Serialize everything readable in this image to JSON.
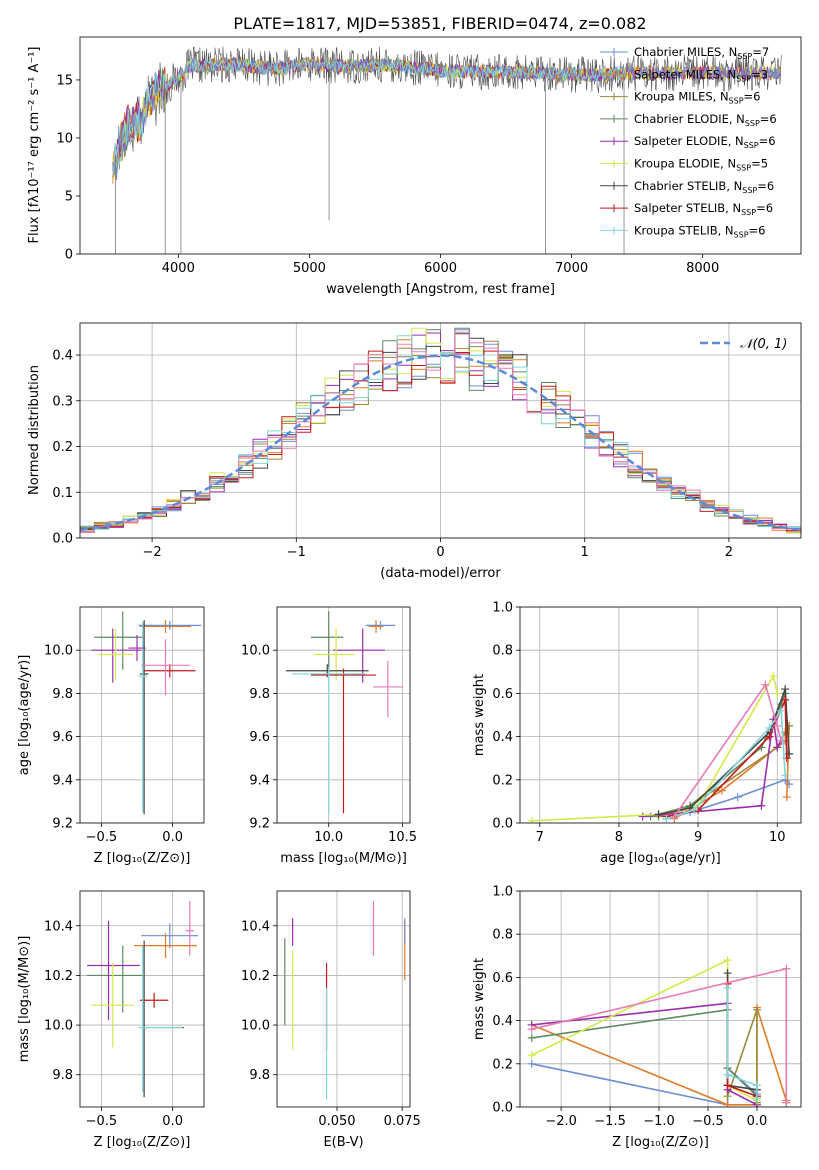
{
  "figure_title": "PLATE=1817, MJD=53851, FIBERID=0474, z=0.082",
  "colors": {
    "Chabrier MILES": "#6a8fd8",
    "Salpeter MILES": "#e07b28",
    "Kroupa MILES": "#9a8a3a",
    "Chabrier ELODIE": "#5e8a60",
    "Salpeter ELODIE": "#9b2fb0",
    "Kroupa ELODIE": "#d4e84a",
    "Chabrier STELIB": "#444444",
    "Salpeter STELIB": "#c41a1a",
    "Kroupa STELIB": "#7fd6dc",
    "pink": "#e87ab8",
    "grid": "#b0b0b0"
  },
  "chart_data": [
    {
      "id": "spectrum",
      "type": "line",
      "xlabel": "wavelength [Angstrom, rest frame]",
      "ylabel": "Flux [fλ10⁻¹⁷ erg cm⁻² s⁻¹ A⁻¹]",
      "xlim": [
        3250,
        8750
      ],
      "ylim": [
        0,
        18.7
      ],
      "xticks": [
        4000,
        5000,
        6000,
        7000,
        8000
      ],
      "yticks": [
        0,
        5,
        10,
        15
      ],
      "grid": false,
      "legend_position": "top-right",
      "legend": [
        {
          "label": "Chabrier MILES, N",
          "sub": "SSP",
          "value": "=7"
        },
        {
          "label": "Salpeter MILES, N",
          "sub": "SSP",
          "value": "=3"
        },
        {
          "label": "Kroupa MILES, N",
          "sub": "SSP",
          "value": "=6"
        },
        {
          "label": "Chabrier ELODIE, N",
          "sub": "SSP",
          "value": "=6"
        },
        {
          "label": "Salpeter ELODIE, N",
          "sub": "SSP",
          "value": "=6"
        },
        {
          "label": "Kroupa ELODIE, N",
          "sub": "SSP",
          "value": "=5"
        },
        {
          "label": "Chabrier STELIB, N",
          "sub": "SSP",
          "value": "=6"
        },
        {
          "label": "Salpeter STELIB, N",
          "sub": "SSP",
          "value": "=6"
        },
        {
          "label": "Kroupa STELIB, N",
          "sub": "SSP",
          "value": "=6"
        }
      ],
      "profile_x": [
        3500,
        3600,
        3700,
        3800,
        3900,
        4000,
        4100,
        4200,
        4400,
        4600,
        4800,
        5000,
        5200,
        5400,
        5600,
        6000,
        6400,
        6800,
        7200,
        7400
      ],
      "profile_y": [
        7.6,
        10.8,
        11.5,
        13.8,
        14.3,
        15.2,
        16.3,
        16.2,
        16.4,
        16.1,
        16.0,
        16.4,
        16.2,
        16.2,
        16.3,
        15.8,
        15.7,
        15.6,
        15.4,
        15.6
      ]
    },
    {
      "id": "residuals",
      "type": "histogram",
      "xlabel": "(data-model)/error",
      "ylabel": "Normed distribution",
      "xlim": [
        -2.5,
        2.5
      ],
      "ylim": [
        0,
        0.47
      ],
      "xticks": [
        -2,
        -1,
        0,
        1,
        2
      ],
      "yticks": [
        0.0,
        0.1,
        0.2,
        0.3,
        0.4
      ],
      "grid": true,
      "bin_width": 0.1,
      "legend": "𝒩(0, 1)",
      "gaussian": {
        "mean": 0,
        "sigma": 1
      }
    },
    {
      "id": "age_vs_Z",
      "type": "errorbar",
      "xlabel": "Z [log₁₀(Z/Z⊙)]",
      "ylabel": "age  [log₁₀(age/yr)]",
      "xlim": [
        -0.65,
        0.22
      ],
      "ylim": [
        9.2,
        10.2
      ],
      "xticks": [
        -0.5,
        0.0
      ],
      "yticks": [
        9.2,
        9.4,
        9.6,
        9.8,
        10.0
      ],
      "grid": true,
      "points": [
        {
          "series": "Chabrier MILES",
          "x": -0.02,
          "y": 10.115,
          "xerr": [
            0.22,
            0.22
          ],
          "yerr": [
            0.02,
            0.02
          ]
        },
        {
          "series": "Salpeter MILES",
          "x": -0.05,
          "y": 10.11,
          "xerr": [
            0.18,
            0.18
          ],
          "yerr": [
            0.03,
            0.03
          ]
        },
        {
          "series": "Chabrier ELODIE",
          "x": -0.35,
          "y": 10.06,
          "xerr": [
            0.2,
            0.15
          ],
          "yerr": [
            0.15,
            0.12
          ]
        },
        {
          "series": "Salpeter ELODIE",
          "x": -0.42,
          "y": 10.0,
          "xerr": [
            0.15,
            0.2
          ],
          "yerr": [
            0.15,
            0.1
          ]
        },
        {
          "series": "Kroupa ELODIE",
          "x": -0.4,
          "y": 9.98,
          "xerr": [
            0.12,
            0.12
          ],
          "yerr": [
            0.12,
            0.12
          ]
        },
        {
          "series": "Chabrier STELIB",
          "x": -0.2,
          "y": 9.89,
          "xerr": [
            0.03,
            0.03
          ],
          "yerr": [
            0.65,
            0.25
          ]
        },
        {
          "series": "Salpeter STELIB",
          "x": -0.02,
          "y": 9.905,
          "xerr": [
            0.18,
            0.18
          ],
          "yerr": [
            0.03,
            0.03
          ]
        },
        {
          "series": "Kroupa STELIB",
          "x": -0.21,
          "y": 9.88,
          "xerr": [
            0.03,
            0.03
          ],
          "yerr": [
            0.63,
            0.25
          ]
        },
        {
          "series": "pink",
          "x": -0.05,
          "y": 9.93,
          "xerr": [
            0.17,
            0.17
          ],
          "yerr": [
            0.14,
            0.12
          ]
        },
        {
          "series": "Salpeter ELODIE",
          "x": -0.25,
          "y": 10.01,
          "xerr": [
            0.06,
            0.06
          ],
          "yerr": [
            0.06,
            0.06
          ]
        }
      ]
    },
    {
      "id": "age_vs_mass",
      "type": "errorbar",
      "xlabel": "mass [log₁₀(M/M⊙)]",
      "ylabel": "",
      "xlim": [
        9.65,
        10.55
      ],
      "ylim": [
        9.2,
        10.2
      ],
      "xticks": [
        10.0,
        10.5
      ],
      "yticks": [
        9.2,
        9.4,
        9.6,
        9.8,
        10.0
      ],
      "grid": true,
      "points": [
        {
          "series": "Chabrier MILES",
          "x": 10.35,
          "y": 10.115,
          "xerr": [
            0.1,
            0.1
          ],
          "yerr": [
            0.02,
            0.02
          ]
        },
        {
          "series": "Salpeter MILES",
          "x": 10.32,
          "y": 10.11,
          "xerr": [
            0.05,
            0.05
          ],
          "yerr": [
            0.03,
            0.03
          ]
        },
        {
          "series": "Chabrier ELODIE",
          "x": 10.0,
          "y": 10.06,
          "xerr": [
            0.12,
            0.1
          ],
          "yerr": [
            0.15,
            0.12
          ]
        },
        {
          "series": "Salpeter ELODIE",
          "x": 10.23,
          "y": 10.0,
          "xerr": [
            0.2,
            0.15
          ],
          "yerr": [
            0.15,
            0.1
          ]
        },
        {
          "series": "Kroupa ELODIE",
          "x": 10.05,
          "y": 9.98,
          "xerr": [
            0.15,
            0.12
          ],
          "yerr": [
            0.12,
            0.12
          ]
        },
        {
          "series": "Chabrier STELIB",
          "x": 9.99,
          "y": 9.905,
          "xerr": [
            0.28,
            0.28
          ],
          "yerr": [
            0.03,
            0.03
          ]
        },
        {
          "series": "Salpeter STELIB",
          "x": 10.1,
          "y": 9.885,
          "xerr": [
            0.22,
            0.22
          ],
          "yerr": [
            0.64,
            0.03
          ]
        },
        {
          "series": "Kroupa STELIB",
          "x": 10.0,
          "y": 9.89,
          "xerr": [
            0.25,
            0.25
          ],
          "yerr": [
            0.65,
            0.03
          ]
        },
        {
          "series": "pink",
          "x": 10.4,
          "y": 9.83,
          "xerr": [
            0.1,
            0.1
          ],
          "yerr": [
            0.14,
            0.12
          ]
        }
      ]
    },
    {
      "id": "weight_vs_age",
      "type": "line",
      "xlabel": "age  [log₁₀(age/yr)]",
      "ylabel": "mass weight",
      "xlim": [
        6.75,
        10.3
      ],
      "ylim": [
        0,
        1.0
      ],
      "xticks": [
        7,
        8,
        9,
        10
      ],
      "yticks": [
        0.0,
        0.2,
        0.4,
        0.6,
        0.8,
        1.0
      ],
      "grid": true,
      "series": [
        {
          "name": "Chabrier MILES",
          "x": [
            8.6,
            8.9,
            9.5,
            10.1,
            10.15
          ],
          "y": [
            0.02,
            0.05,
            0.12,
            0.2,
            0.18
          ]
        },
        {
          "name": "Salpeter MILES",
          "x": [
            8.7,
            9.3,
            10.1,
            10.15,
            10.12
          ],
          "y": [
            0.02,
            0.15,
            0.38,
            0.45,
            0.12
          ]
        },
        {
          "name": "Kroupa MILES",
          "x": [
            8.5,
            8.8,
            9.2,
            10.0,
            10.1,
            10.15
          ],
          "y": [
            0.03,
            0.06,
            0.15,
            0.35,
            0.42,
            0.45
          ]
        },
        {
          "name": "Chabrier ELODIE",
          "x": [
            8.4,
            8.9,
            9.8,
            10.05,
            10.1
          ],
          "y": [
            0.03,
            0.08,
            0.35,
            0.55,
            0.6
          ]
        },
        {
          "name": "Salpeter ELODIE",
          "x": [
            8.3,
            9.8,
            9.95,
            10.0,
            10.05
          ],
          "y": [
            0.03,
            0.08,
            0.48,
            0.35,
            0.38
          ]
        },
        {
          "name": "Kroupa ELODIE",
          "x": [
            6.9,
            8.5,
            9.0,
            9.95,
            10.0
          ],
          "y": [
            0.01,
            0.04,
            0.08,
            0.68,
            0.6
          ]
        },
        {
          "name": "Chabrier STELIB",
          "x": [
            8.5,
            8.9,
            9.9,
            10.1,
            10.15
          ],
          "y": [
            0.04,
            0.07,
            0.42,
            0.62,
            0.32
          ]
        },
        {
          "name": "Salpeter STELIB",
          "x": [
            8.6,
            9.0,
            9.9,
            10.1,
            10.12
          ],
          "y": [
            0.03,
            0.06,
            0.4,
            0.57,
            0.3
          ]
        },
        {
          "name": "Kroupa STELIB",
          "x": [
            8.6,
            8.95,
            9.9,
            10.05,
            10.1
          ],
          "y": [
            0.02,
            0.06,
            0.44,
            0.52,
            0.22
          ]
        },
        {
          "name": "pink",
          "x": [
            8.7,
            9.85,
            10.0,
            10.05
          ],
          "y": [
            0.03,
            0.64,
            0.45,
            0.38
          ]
        }
      ]
    },
    {
      "id": "mass_vs_Z",
      "type": "errorbar",
      "xlabel": "Z [log₁₀(Z/Z⊙)]",
      "ylabel": "mass [log₁₀(M/M⊙)]",
      "xlim": [
        -0.65,
        0.22
      ],
      "ylim": [
        9.67,
        10.54
      ],
      "xticks": [
        -0.5,
        0.0
      ],
      "yticks": [
        9.8,
        10.0,
        10.2,
        10.4
      ],
      "grid": true,
      "points": [
        {
          "series": "Chabrier MILES",
          "x": -0.02,
          "y": 10.36,
          "xerr": [
            0.2,
            0.2
          ],
          "yerr": [
            0.05,
            0.05
          ]
        },
        {
          "series": "Salpeter MILES",
          "x": -0.05,
          "y": 10.32,
          "xerr": [
            0.22,
            0.22
          ],
          "yerr": [
            0.05,
            0.05
          ]
        },
        {
          "series": "Chabrier ELODIE",
          "x": -0.35,
          "y": 10.2,
          "xerr": [
            0.25,
            0.15
          ],
          "yerr": [
            0.15,
            0.12
          ]
        },
        {
          "series": "Salpeter ELODIE",
          "x": -0.45,
          "y": 10.24,
          "xerr": [
            0.15,
            0.22
          ],
          "yerr": [
            0.22,
            0.18
          ]
        },
        {
          "series": "Kroupa ELODIE",
          "x": -0.42,
          "y": 10.08,
          "xerr": [
            0.15,
            0.15
          ],
          "yerr": [
            0.17,
            0.17
          ]
        },
        {
          "series": "Chabrier STELIB",
          "x": -0.2,
          "y": 9.99,
          "xerr": [
            0.03,
            0.28
          ],
          "yerr": [
            0.28,
            0.35
          ]
        },
        {
          "series": "Salpeter STELIB",
          "x": -0.13,
          "y": 10.1,
          "xerr": [
            0.1,
            0.1
          ],
          "yerr": [
            0.03,
            0.03
          ]
        },
        {
          "series": "Kroupa STELIB",
          "x": -0.21,
          "y": 9.99,
          "xerr": [
            0.03,
            0.28
          ],
          "yerr": [
            0.26,
            0.33
          ]
        },
        {
          "series": "pink",
          "x": 0.12,
          "y": 10.38,
          "xerr": [
            0.03,
            0.03
          ],
          "yerr": [
            0.1,
            0.12
          ]
        }
      ]
    },
    {
      "id": "mass_vs_ebv",
      "type": "errorbar",
      "xlabel": "E(B-V)",
      "ylabel": "",
      "xlim": [
        0.027,
        0.078
      ],
      "ylim": [
        9.67,
        10.54
      ],
      "xticks": [
        0.05,
        0.075
      ],
      "yticks": [
        9.8,
        10.0,
        10.2,
        10.4
      ],
      "grid": true,
      "points": [
        {
          "series": "Chabrier ELODIE",
          "x": 0.03,
          "y": 10.15,
          "xerr": [
            0,
            0
          ],
          "yerr": [
            0.15,
            0.2
          ]
        },
        {
          "series": "Salpeter ELODIE",
          "x": 0.033,
          "y": 10.37,
          "xerr": [
            0,
            0
          ],
          "yerr": [
            0.05,
            0.06
          ]
        },
        {
          "series": "Kroupa ELODIE",
          "x": 0.033,
          "y": 10.1,
          "xerr": [
            0,
            0
          ],
          "yerr": [
            0.2,
            0.2
          ]
        },
        {
          "series": "Salpeter STELIB",
          "x": 0.046,
          "y": 10.05,
          "xerr": [
            0,
            0
          ],
          "yerr": [
            0.15,
            0.2
          ]
        },
        {
          "series": "Kroupa STELIB",
          "x": 0.046,
          "y": 9.95,
          "xerr": [
            0,
            0
          ],
          "yerr": [
            0.25,
            0.2
          ]
        },
        {
          "series": "pink",
          "x": 0.064,
          "y": 10.4,
          "xerr": [
            0,
            0
          ],
          "yerr": [
            0.12,
            0.1
          ]
        },
        {
          "series": "Salpeter MILES",
          "x": 0.076,
          "y": 10.3,
          "xerr": [
            0,
            0
          ],
          "yerr": [
            0.12,
            0.12
          ]
        },
        {
          "series": "Chabrier MILES",
          "x": 0.076,
          "y": 10.38,
          "xerr": [
            0,
            0
          ],
          "yerr": [
            0.05,
            0.05
          ]
        }
      ]
    },
    {
      "id": "weight_vs_Z",
      "type": "line",
      "xlabel": "Z [log₁₀(Z/Z⊙)]",
      "ylabel": "mass weight",
      "xlim": [
        -2.42,
        0.45
      ],
      "ylim": [
        0,
        1.0
      ],
      "xticks": [
        -2.0,
        -1.5,
        -1.0,
        -0.5,
        0.0
      ],
      "yticks": [
        0.0,
        0.2,
        0.4,
        0.6,
        0.8,
        1.0
      ],
      "grid": true,
      "series": [
        {
          "name": "Chabrier MILES",
          "x": [
            -2.3,
            -0.3,
            -0.3,
            0.0,
            0.0
          ],
          "y": [
            0.2,
            0.01,
            0.18,
            0.06,
            0.02
          ]
        },
        {
          "name": "Salpeter MILES",
          "x": [
            -2.3,
            -0.3,
            0.0,
            0.0,
            0.3,
            0.3
          ],
          "y": [
            0.38,
            0.01,
            0.01,
            0.46,
            0.03,
            0.02
          ]
        },
        {
          "name": "Kroupa MILES",
          "x": [
            -0.3,
            -0.3,
            0.0,
            0.0
          ],
          "y": [
            0.1,
            0.05,
            0.45,
            0.02
          ]
        },
        {
          "name": "Chabrier ELODIE",
          "x": [
            -2.3,
            -0.3,
            -0.3,
            0.0
          ],
          "y": [
            0.32,
            0.45,
            0.18,
            0.05
          ]
        },
        {
          "name": "Salpeter ELODIE",
          "x": [
            -2.3,
            -0.3,
            -0.3,
            0.0
          ],
          "y": [
            0.38,
            0.48,
            0.08,
            0.01
          ]
        },
        {
          "name": "Kroupa ELODIE",
          "x": [
            -2.3,
            -0.3,
            -0.3,
            0.0
          ],
          "y": [
            0.24,
            0.68,
            0.1,
            0.03
          ]
        },
        {
          "name": "Chabrier STELIB",
          "x": [
            -0.3,
            -0.3,
            0.0,
            0.0
          ],
          "y": [
            0.62,
            0.1,
            0.08,
            0.04
          ]
        },
        {
          "name": "Salpeter STELIB",
          "x": [
            -0.3,
            -0.3,
            0.0
          ],
          "y": [
            0.57,
            0.1,
            0.05
          ]
        },
        {
          "name": "Kroupa STELIB",
          "x": [
            -0.3,
            -0.3,
            0.0,
            0.0
          ],
          "y": [
            0.55,
            0.15,
            0.1,
            0.04
          ]
        },
        {
          "name": "pink",
          "x": [
            -2.3,
            0.3,
            0.3
          ],
          "y": [
            0.36,
            0.64,
            0.02
          ]
        }
      ]
    }
  ]
}
